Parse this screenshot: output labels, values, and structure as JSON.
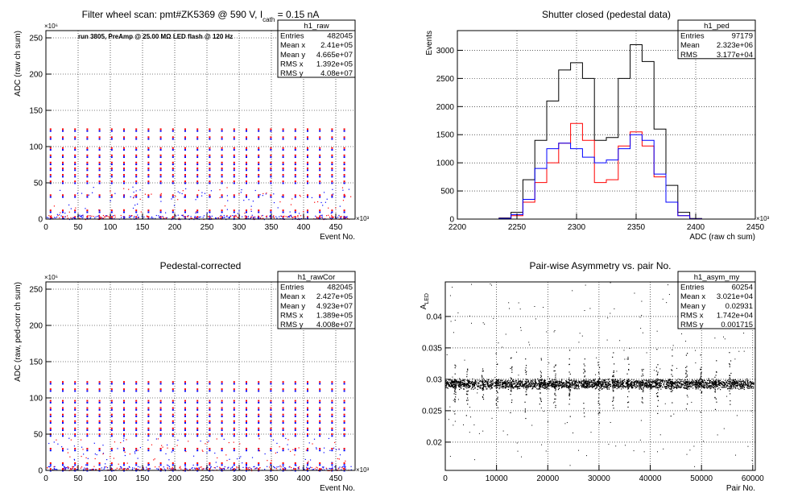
{
  "chart_data": [
    {
      "type": "scatter",
      "panel": "top-left",
      "title": "Filter wheel scan: pmt#ZK5369 @   590 V, I",
      "title_sub": "cath",
      "title_tail": " = 0.15 nA",
      "annotation": "run 3805, PreAmp @ 25.00 MΩ LED flash @  120 Hz",
      "xlabel": "Event No.",
      "ylabel": "ADC (raw ch sum)",
      "x_multiplier": "×10³",
      "y_multiplier": "×10⁶",
      "xlim": [
        0,
        480
      ],
      "ylim": [
        0,
        260
      ],
      "xticks": [
        0,
        50,
        100,
        150,
        200,
        250,
        300,
        350,
        400,
        450
      ],
      "yticks": [
        0,
        50,
        100,
        150,
        200,
        250
      ],
      "grid": true,
      "stats": {
        "name": "h1_raw",
        "rows": [
          [
            "Entries",
            "482045"
          ],
          [
            "Mean x",
            "2.41e+05"
          ],
          [
            "Mean y",
            "4.665e+07"
          ],
          [
            "RMS x",
            "1.392e+05"
          ],
          [
            "RMS y",
            "4.08e+07"
          ]
        ]
      },
      "series": [
        {
          "color": "#ff0000",
          "levels": [
            3,
            12,
            33,
            52,
            61,
            70,
            78,
            88,
            98,
            113,
            124
          ]
        },
        {
          "color": "#0000ff",
          "levels": [
            3,
            12,
            33,
            52,
            61,
            70,
            78,
            88,
            98,
            113,
            124
          ]
        }
      ]
    },
    {
      "type": "line",
      "panel": "top-right",
      "title": "Shutter closed (pedestal data)",
      "xlabel": "ADC (raw ch sum)",
      "ylabel": "Events",
      "x_multiplier": "×10³",
      "xlim": [
        2200,
        2450
      ],
      "ylim": [
        0,
        3350
      ],
      "xticks": [
        2200,
        2250,
        2300,
        2350,
        2400,
        2450
      ],
      "yticks": [
        0,
        500,
        1000,
        1500,
        2000,
        2500,
        3000
      ],
      "grid": true,
      "stats": {
        "name": "h1_ped",
        "rows": [
          [
            "Entries",
            "97179"
          ],
          [
            "Mean",
            "2.323e+06"
          ],
          [
            "RMS",
            "3.177e+04"
          ]
        ]
      },
      "x": [
        2230,
        2240,
        2250,
        2260,
        2270,
        2280,
        2290,
        2300,
        2310,
        2320,
        2330,
        2340,
        2350,
        2360,
        2370,
        2380,
        2390,
        2400
      ],
      "series": [
        {
          "color": "#000000",
          "values": [
            0,
            20,
            120,
            700,
            1400,
            2100,
            2650,
            2780,
            2500,
            1400,
            1450,
            2500,
            3100,
            2800,
            1600,
            600,
            120,
            10
          ]
        },
        {
          "color": "#ff0000",
          "values": [
            0,
            10,
            60,
            300,
            650,
            1000,
            1350,
            1700,
            1400,
            650,
            700,
            1300,
            1550,
            1300,
            750,
            300,
            60,
            5
          ]
        },
        {
          "color": "#0000ff",
          "values": [
            0,
            10,
            80,
            350,
            900,
            1250,
            1350,
            1250,
            1100,
            1000,
            1050,
            1250,
            1500,
            1400,
            800,
            300,
            60,
            5
          ]
        }
      ]
    },
    {
      "type": "scatter",
      "panel": "bottom-left",
      "title": "Pedestal-corrected",
      "xlabel": "Event No.",
      "ylabel": "ADC (raw, ped-corr ch sum)",
      "x_multiplier": "×10³",
      "y_multiplier": "×10⁶",
      "xlim": [
        0,
        480
      ],
      "ylim": [
        0,
        260
      ],
      "xticks": [
        0,
        50,
        100,
        150,
        200,
        250,
        300,
        350,
        400,
        450
      ],
      "yticks": [
        0,
        50,
        100,
        150,
        200,
        250
      ],
      "grid": true,
      "stats": {
        "name": "h1_rawCor",
        "rows": [
          [
            "Entries",
            "482045"
          ],
          [
            "Mean x",
            "2.427e+05"
          ],
          [
            "Mean y",
            "4.923e+07"
          ],
          [
            "RMS x",
            "1.389e+05"
          ],
          [
            "RMS y",
            "4.008e+07"
          ]
        ]
      },
      "series": [
        {
          "color": "#ff0000",
          "levels": [
            2,
            10,
            30,
            50,
            58,
            68,
            77,
            86,
            96,
            112,
            122
          ]
        },
        {
          "color": "#0000ff",
          "levels": [
            2,
            10,
            30,
            50,
            58,
            68,
            77,
            86,
            96,
            112,
            122
          ]
        }
      ]
    },
    {
      "type": "scatter",
      "panel": "bottom-right",
      "title": "Pair-wise Asymmetry vs. pair No.",
      "xlabel": "Pair No.",
      "ylabel": "A",
      "ylabel_sub": "LED",
      "xlim": [
        0,
        60500
      ],
      "ylim": [
        0.0155,
        0.0455
      ],
      "xticks": [
        0,
        10000,
        20000,
        30000,
        40000,
        50000,
        60000
      ],
      "yticks": [
        0.02,
        0.025,
        0.03,
        0.035,
        0.04
      ],
      "ytick_labels": [
        "0.02",
        "0.025",
        "0.03",
        "0.035",
        "0.04"
      ],
      "grid": true,
      "stats": {
        "name": "h1_asym_my",
        "rows": [
          [
            "Entries",
            "60254"
          ],
          [
            "Mean x",
            "3.021e+04"
          ],
          [
            "Mean y",
            "0.02931"
          ],
          [
            "RMS x",
            "1.742e+04"
          ],
          [
            "RMS y",
            "0.001715"
          ]
        ]
      },
      "series": [
        {
          "color": "#000000",
          "band_center": 0.0293,
          "band_halfwidth": 0.0009,
          "spike_x": [
            1800,
            4200,
            7200,
            10000,
            12800,
            15600,
            18500,
            21300,
            24200,
            27000,
            29900,
            32700,
            35600,
            38400,
            41300,
            44100,
            47000,
            49800,
            52700,
            55500
          ]
        }
      ]
    }
  ]
}
